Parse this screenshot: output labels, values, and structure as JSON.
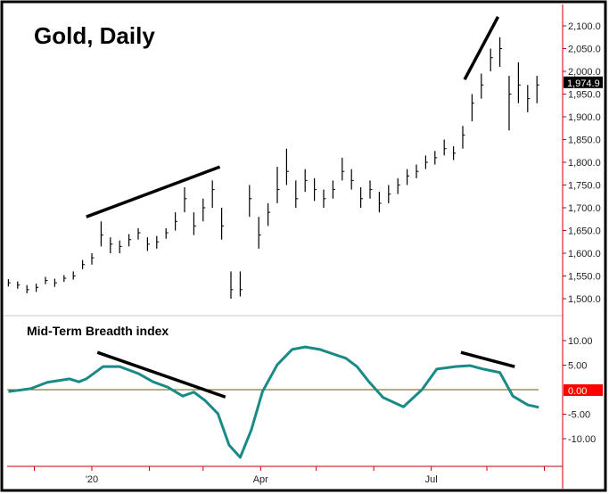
{
  "chart_data": [
    {
      "type": "ohlc-bar",
      "title": "Gold, Daily",
      "ylim": [
        1470,
        2140
      ],
      "yticks": [
        "2,100.0",
        "2,050.0",
        "2,000.0",
        "1,950.0",
        "1,900.0",
        "1,850.0",
        "1,800.0",
        "1,750.0",
        "1,700.0",
        "1,650.0",
        "1,600.0",
        "1,550.0",
        "1,500.0"
      ],
      "ytick_values": [
        2100,
        2050,
        2000,
        1950,
        1900,
        1850,
        1800,
        1750,
        1700,
        1650,
        1600,
        1550,
        1500
      ],
      "last_price_label": "1,974.9",
      "last_price": 1974.9,
      "bars_columns": [
        "date",
        "high",
        "low",
        "close"
      ],
      "bars": [
        [
          "2019-11-17",
          1543,
          1527,
          1535
        ],
        [
          "2019-11-22",
          1538,
          1522,
          1530
        ],
        [
          "2019-11-27",
          1530,
          1512,
          1520
        ],
        [
          "2019-12-02",
          1533,
          1515,
          1525
        ],
        [
          "2019-12-07",
          1548,
          1532,
          1540
        ],
        [
          "2019-12-12",
          1544,
          1526,
          1535
        ],
        [
          "2019-12-17",
          1552,
          1537,
          1545
        ],
        [
          "2019-12-22",
          1560,
          1542,
          1550
        ],
        [
          "2019-12-27",
          1585,
          1565,
          1575
        ],
        [
          "2020-01-01",
          1600,
          1575,
          1590
        ],
        [
          "2020-01-06",
          1670,
          1615,
          1640
        ],
        [
          "2020-01-11",
          1635,
          1600,
          1620
        ],
        [
          "2020-01-16",
          1628,
          1600,
          1615
        ],
        [
          "2020-01-21",
          1642,
          1615,
          1630
        ],
        [
          "2020-01-26",
          1655,
          1630,
          1645
        ],
        [
          "2020-01-31",
          1635,
          1605,
          1620
        ],
        [
          "2020-02-05",
          1638,
          1610,
          1625
        ],
        [
          "2020-02-10",
          1655,
          1632,
          1645
        ],
        [
          "2020-02-15",
          1690,
          1650,
          1670
        ],
        [
          "2020-02-20",
          1745,
          1690,
          1720
        ],
        [
          "2020-02-25",
          1690,
          1640,
          1660
        ],
        [
          "2020-03-01",
          1720,
          1670,
          1700
        ],
        [
          "2020-03-06",
          1760,
          1700,
          1740
        ],
        [
          "2020-03-11",
          1700,
          1630,
          1660
        ],
        [
          "2020-03-16",
          1560,
          1500,
          1520
        ],
        [
          "2020-03-21",
          1560,
          1505,
          1520
        ],
        [
          "2020-03-26",
          1750,
          1680,
          1720
        ],
        [
          "2020-03-31",
          1680,
          1610,
          1640
        ],
        [
          "2020-04-05",
          1710,
          1660,
          1690
        ],
        [
          "2020-04-10",
          1790,
          1710,
          1740
        ],
        [
          "2020-04-15",
          1830,
          1750,
          1780
        ],
        [
          "2020-04-20",
          1760,
          1700,
          1720
        ],
        [
          "2020-04-25",
          1785,
          1735,
          1760
        ],
        [
          "2020-04-30",
          1765,
          1715,
          1740
        ],
        [
          "2020-05-05",
          1740,
          1700,
          1720
        ],
        [
          "2020-05-10",
          1760,
          1720,
          1740
        ],
        [
          "2020-05-15",
          1810,
          1760,
          1780
        ],
        [
          "2020-05-20",
          1785,
          1740,
          1760
        ],
        [
          "2020-05-25",
          1745,
          1700,
          1720
        ],
        [
          "2020-05-30",
          1760,
          1720,
          1740
        ],
        [
          "2020-06-04",
          1735,
          1690,
          1710
        ],
        [
          "2020-06-09",
          1750,
          1710,
          1730
        ],
        [
          "2020-06-14",
          1765,
          1730,
          1750
        ],
        [
          "2020-06-19",
          1785,
          1750,
          1770
        ],
        [
          "2020-06-24",
          1795,
          1765,
          1780
        ],
        [
          "2020-06-29",
          1815,
          1785,
          1800
        ],
        [
          "2020-07-04",
          1825,
          1795,
          1810
        ],
        [
          "2020-07-09",
          1850,
          1815,
          1830
        ],
        [
          "2020-07-14",
          1835,
          1805,
          1820
        ],
        [
          "2020-07-19",
          1880,
          1830,
          1860
        ],
        [
          "2020-07-24",
          1950,
          1890,
          1930
        ],
        [
          "2020-07-29",
          1995,
          1940,
          1970
        ],
        [
          "2020-08-03",
          2050,
          2000,
          2030
        ],
        [
          "2020-08-08",
          2075,
          2010,
          2050
        ],
        [
          "2020-08-13",
          1990,
          1870,
          1950
        ],
        [
          "2020-08-18",
          2020,
          1930,
          1970
        ],
        [
          "2020-08-23",
          1970,
          1910,
          1940
        ],
        [
          "2020-08-28",
          1990,
          1930,
          1970
        ]
      ],
      "trendlines": [
        {
          "start": [
            "2019-12-29",
            1680
          ],
          "end": [
            "2020-03-10",
            1790
          ]
        },
        {
          "start": [
            "2020-07-20",
            1982
          ],
          "end": [
            "2020-08-07",
            2120
          ]
        }
      ],
      "line_color": "#000000"
    },
    {
      "type": "line",
      "title": "Mid-Term Breadth index",
      "ylim": [
        -15.5,
        13
      ],
      "yticks": [
        "10.00",
        "5.00",
        "-5.00",
        "-10.00"
      ],
      "ytick_values": [
        10,
        5,
        -5,
        -10
      ],
      "last_value_label": "0.00",
      "zero_line_color": "#6b5a00",
      "line_color": "#1a8a86",
      "points": [
        [
          "2019-11-17",
          -0.4
        ],
        [
          "2019-11-29",
          0.2
        ],
        [
          "2019-12-08",
          1.5
        ],
        [
          "2019-12-20",
          2.2
        ],
        [
          "2019-12-25",
          1.6
        ],
        [
          "2019-12-29",
          2.2
        ],
        [
          "2020-01-07",
          4.7
        ],
        [
          "2020-01-16",
          4.7
        ],
        [
          "2020-01-26",
          3.3
        ],
        [
          "2020-02-03",
          1.6
        ],
        [
          "2020-02-11",
          0.5
        ],
        [
          "2020-02-19",
          -1.3
        ],
        [
          "2020-02-25",
          -0.5
        ],
        [
          "2020-03-02",
          -2.2
        ],
        [
          "2020-03-09",
          -4.9
        ],
        [
          "2020-03-15",
          -11.3
        ],
        [
          "2020-03-21",
          -13.8
        ],
        [
          "2020-03-27",
          -8.2
        ],
        [
          "2020-04-02",
          -0.4
        ],
        [
          "2020-04-10",
          5.1
        ],
        [
          "2020-04-18",
          8.2
        ],
        [
          "2020-04-25",
          8.7
        ],
        [
          "2020-05-03",
          8.2
        ],
        [
          "2020-05-17",
          6.4
        ],
        [
          "2020-05-23",
          4.7
        ],
        [
          "2020-05-29",
          1.8
        ],
        [
          "2020-06-06",
          -1.6
        ],
        [
          "2020-06-17",
          -3.5
        ],
        [
          "2020-06-27",
          0.0
        ],
        [
          "2020-07-05",
          4.2
        ],
        [
          "2020-07-15",
          4.7
        ],
        [
          "2020-07-23",
          4.9
        ],
        [
          "2020-07-30",
          4.2
        ],
        [
          "2020-08-08",
          3.5
        ],
        [
          "2020-08-15",
          -1.3
        ],
        [
          "2020-08-23",
          -3.1
        ],
        [
          "2020-08-29",
          -3.6
        ]
      ],
      "trendlines": [
        {
          "start": [
            "2020-01-04",
            7.6
          ],
          "end": [
            "2020-03-13",
            -1.5
          ]
        },
        {
          "start": [
            "2020-07-18",
            7.6
          ],
          "end": [
            "2020-08-16",
            4.7
          ]
        }
      ]
    }
  ],
  "xaxis": {
    "labels": [
      {
        "text": "'20",
        "date": "2020-01-01"
      },
      {
        "text": "Apr",
        "date": "2020-04-01"
      },
      {
        "text": "Jul",
        "date": "2020-07-02"
      }
    ],
    "minor_ticks": [
      "2019-12-01",
      "2020-02-01",
      "2020-03-01",
      "2020-05-01",
      "2020-06-01",
      "2020-08-01",
      "2020-09-01"
    ]
  },
  "colors": {
    "axis": "#cc0000",
    "last_price_bg": "#000000",
    "zero_label_bg": "#ff0000",
    "separator": "#c8c8c8"
  }
}
